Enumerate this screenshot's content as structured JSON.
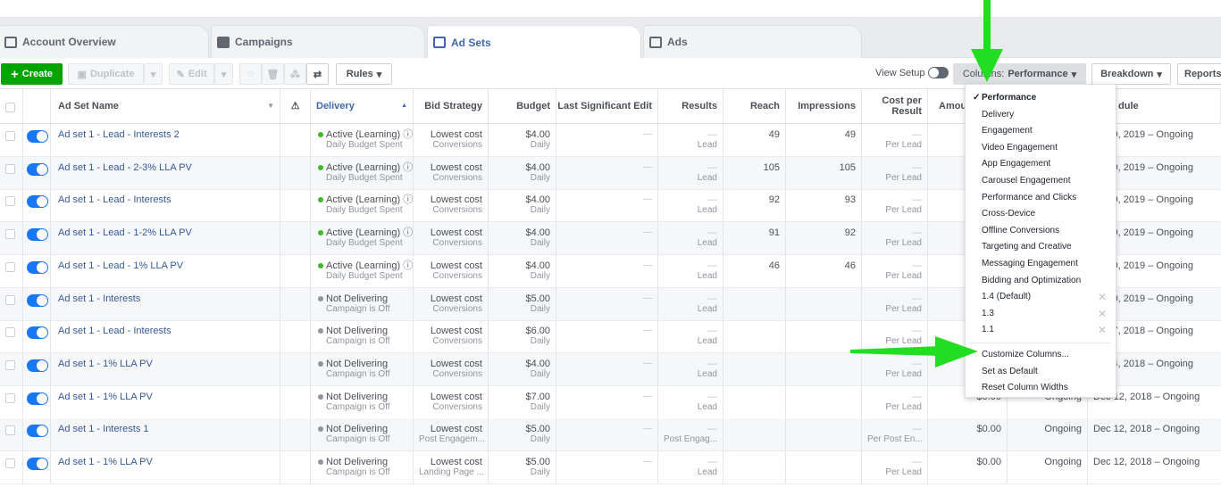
{
  "tabs": [
    {
      "label": "Account Overview",
      "icon": "account-overview-icon"
    },
    {
      "label": "Campaigns",
      "icon": "campaigns-icon"
    },
    {
      "label": "Ad Sets",
      "icon": "ad-sets-icon",
      "active": true
    },
    {
      "label": "Ads",
      "icon": "ads-icon"
    }
  ],
  "toolbar": {
    "create": "Create",
    "duplicate": "Duplicate",
    "edit": "Edit",
    "rules": "Rules",
    "view_setup": "View Setup",
    "columns_prefix": "Columns:",
    "columns_value": "Performance",
    "breakdown": "Breakdown",
    "reports": "Reports"
  },
  "columns": [
    "Ad Set Name",
    "Delivery",
    "Bid Strategy",
    "Budget",
    "Last Significant Edit",
    "Results",
    "Reach",
    "Impressions",
    "Cost per Result",
    "Amou",
    "",
    "dule"
  ],
  "rows": [
    {
      "name": "Ad set 1 - Lead - Interests 2",
      "status": "Active (Learning)",
      "status_sub": "Daily Budget Spent",
      "active": true,
      "bid": "Lowest cost",
      "bid_sub": "Conversions",
      "budget": "$4.00",
      "budget_sub": "Daily",
      "edit": "—",
      "results": "—",
      "results_sub": "Lead",
      "reach": "49",
      "impressions": "49",
      "cost": "—",
      "cost_sub": "Per Lead",
      "amount": "",
      "ends": "",
      "schedule": "9, 2019 – Ongoing"
    },
    {
      "name": "Ad set 1 - Lead - 2-3% LLA PV",
      "status": "Active (Learning)",
      "status_sub": "Daily Budget Spent",
      "active": true,
      "bid": "Lowest cost",
      "bid_sub": "Conversions",
      "budget": "$4.00",
      "budget_sub": "Daily",
      "edit": "—",
      "results": "—",
      "results_sub": "Lead",
      "reach": "105",
      "impressions": "105",
      "cost": "—",
      "cost_sub": "Per Lead",
      "amount": "",
      "ends": "",
      "schedule": "9, 2019 – Ongoing"
    },
    {
      "name": "Ad set 1 - Lead - Interests",
      "status": "Active (Learning)",
      "status_sub": "Daily Budget Spent",
      "active": true,
      "bid": "Lowest cost",
      "bid_sub": "Conversions",
      "budget": "$4.00",
      "budget_sub": "Daily",
      "edit": "—",
      "results": "—",
      "results_sub": "Lead",
      "reach": "92",
      "impressions": "93",
      "cost": "—",
      "cost_sub": "Per Lead",
      "amount": "",
      "ends": "",
      "schedule": "9, 2019 – Ongoing"
    },
    {
      "name": "Ad set 1 - Lead - 1-2% LLA PV",
      "status": "Active (Learning)",
      "status_sub": "Daily Budget Spent",
      "active": true,
      "bid": "Lowest cost",
      "bid_sub": "Conversions",
      "budget": "$4.00",
      "budget_sub": "Daily",
      "edit": "—",
      "results": "—",
      "results_sub": "Lead",
      "reach": "91",
      "impressions": "92",
      "cost": "—",
      "cost_sub": "Per Lead",
      "amount": "",
      "ends": "",
      "schedule": "9, 2019 – Ongoing"
    },
    {
      "name": "Ad set 1 - Lead - 1% LLA PV",
      "status": "Active (Learning)",
      "status_sub": "Daily Budget Spent",
      "active": true,
      "bid": "Lowest cost",
      "bid_sub": "Conversions",
      "budget": "$4.00",
      "budget_sub": "Daily",
      "edit": "—",
      "results": "—",
      "results_sub": "Lead",
      "reach": "46",
      "impressions": "46",
      "cost": "—",
      "cost_sub": "Per Lead",
      "amount": "",
      "ends": "",
      "schedule": "9, 2019 – Ongoing"
    },
    {
      "name": "Ad set 1 - Interests",
      "status": "Not Delivering",
      "status_sub": "Campaign is Off",
      "active": false,
      "bid": "Lowest cost",
      "bid_sub": "Conversions",
      "budget": "$5.00",
      "budget_sub": "Daily",
      "edit": "—",
      "results": "—",
      "results_sub": "Lead",
      "reach": "",
      "impressions": "",
      "cost": "—",
      "cost_sub": "Per Lead",
      "amount": "",
      "ends": "",
      "schedule": "0, 2019 – Ongoing"
    },
    {
      "name": "Ad set 1 - Lead - Interests",
      "status": "Not Delivering",
      "status_sub": "Campaign is Off",
      "active": false,
      "bid": "Lowest cost",
      "bid_sub": "Conversions",
      "budget": "$6.00",
      "budget_sub": "Daily",
      "edit": "—",
      "results": "—",
      "results_sub": "Lead",
      "reach": "",
      "impressions": "",
      "cost": "—",
      "cost_sub": "Per Lead",
      "amount": "",
      "ends": "",
      "schedule": "7, 2018 – Ongoing"
    },
    {
      "name": "Ad set 1 - 1% LLA PV",
      "status": "Not Delivering",
      "status_sub": "Campaign is Off",
      "active": false,
      "bid": "Lowest cost",
      "bid_sub": "Conversions",
      "budget": "$4.00",
      "budget_sub": "Daily",
      "edit": "—",
      "results": "—",
      "results_sub": "Lead",
      "reach": "",
      "impressions": "",
      "cost": "—",
      "cost_sub": "Per Lead",
      "amount": "",
      "ends": "",
      "schedule": "4, 2018 – Ongoing"
    },
    {
      "name": "Ad set 1 - 1% LLA PV",
      "status": "Not Delivering",
      "status_sub": "Campaign is Off",
      "active": false,
      "bid": "Lowest cost",
      "bid_sub": "Conversions",
      "budget": "$7.00",
      "budget_sub": "Daily",
      "edit": "—",
      "results": "—",
      "results_sub": "Lead",
      "reach": "",
      "impressions": "",
      "cost": "—",
      "cost_sub": "Per Lead",
      "amount": "$0.00",
      "ends": "Ongoing",
      "schedule": "Dec 12, 2018 – Ongoing"
    },
    {
      "name": "Ad set 1 - Interests 1",
      "status": "Not Delivering",
      "status_sub": "Campaign is Off",
      "active": false,
      "bid": "Lowest cost",
      "bid_sub": "Post Engagem...",
      "budget": "$5.00",
      "budget_sub": "Daily",
      "edit": "—",
      "results": "—",
      "results_sub": "Post Engag...",
      "reach": "",
      "impressions": "",
      "cost": "—",
      "cost_sub": "Per Post En...",
      "amount": "$0.00",
      "ends": "Ongoing",
      "schedule": "Dec 12, 2018 – Ongoing"
    },
    {
      "name": "Ad set 1 - 1% LLA PV",
      "status": "Not Delivering",
      "status_sub": "Campaign is Off",
      "active": false,
      "bid": "Lowest cost",
      "bid_sub": "Landing Page ...",
      "budget": "$5.00",
      "budget_sub": "Daily",
      "edit": "—",
      "results": "—",
      "results_sub": "Lead",
      "reach": "",
      "impressions": "",
      "cost": "—",
      "cost_sub": "Per Lead",
      "amount": "$0.00",
      "ends": "Ongoing",
      "schedule": "Dec 12, 2018 – Ongoing"
    }
  ],
  "menu": {
    "items": [
      {
        "label": "Performance",
        "checked": true
      },
      {
        "label": "Delivery"
      },
      {
        "label": "Engagement"
      },
      {
        "label": "Video Engagement"
      },
      {
        "label": "App Engagement"
      },
      {
        "label": "Carousel Engagement"
      },
      {
        "label": "Performance and Clicks"
      },
      {
        "label": "Cross-Device"
      },
      {
        "label": "Offline Conversions"
      },
      {
        "label": "Targeting and Creative"
      },
      {
        "label": "Messaging Engagement"
      },
      {
        "label": "Bidding and Optimization"
      },
      {
        "label": "1.4 (Default)",
        "removable": true
      },
      {
        "label": "1.3",
        "removable": true
      },
      {
        "label": "1.1",
        "removable": true
      }
    ],
    "actions": [
      "Customize Columns...",
      "Set as Default",
      "Reset Column Widths"
    ]
  },
  "colors": {
    "accent": "#4267b2",
    "create": "#00a400",
    "active_dot": "#42b72a",
    "inactive_dot": "#90949c",
    "annotation_arrow": "#22dd22"
  }
}
